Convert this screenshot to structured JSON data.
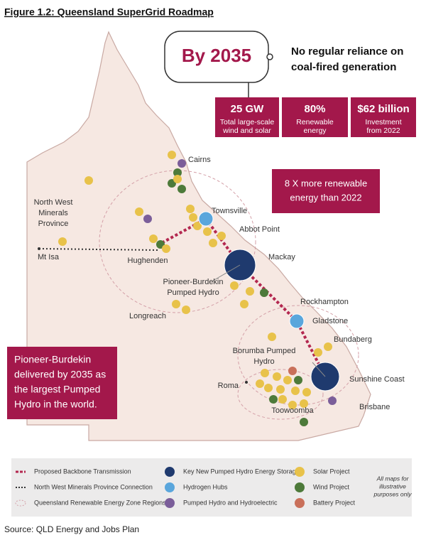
{
  "title": "Figure 1.2: Queensland SuperGrid Roadmap",
  "headline": {
    "callout": "By 2035",
    "statement": [
      "No regular reliance on",
      "coal-fired generation"
    ]
  },
  "stats": [
    {
      "value": "25 GW",
      "label": [
        "Total large-scale",
        "wind and solar"
      ]
    },
    {
      "value": "80%",
      "label": [
        "Renewable",
        "energy"
      ]
    },
    {
      "value": "$62 billion",
      "label": [
        "Investment",
        "from 2022"
      ]
    }
  ],
  "highlight": [
    "8 X more renewable",
    "energy than 2022"
  ],
  "note": [
    "Pioneer-Burdekin",
    "delivered by 2035 as",
    "the largest Pumped",
    "Hydro in the world."
  ],
  "places": [
    [
      "Cairns"
    ],
    [
      "North West",
      "Minerals",
      "Province"
    ],
    [
      "Townsville"
    ],
    [
      "Abbot Point"
    ],
    [
      "Mt Isa"
    ],
    [
      "Hughenden"
    ],
    [
      "Mackay"
    ],
    [
      "Pioneer-Burdekin",
      "Pumped Hydro"
    ],
    [
      "Longreach"
    ],
    [
      "Rockhampton"
    ],
    [
      "Gladstone"
    ],
    [
      "Bundaberg"
    ],
    [
      "Borumba Pumped",
      "Hydro"
    ],
    [
      "Roma"
    ],
    [
      "Sunshine Coast"
    ],
    [
      "Brisbane"
    ],
    [
      "Toowoomba"
    ]
  ],
  "legend": [
    "Proposed Backbone Transmission",
    "North West Minerals Province Connection",
    "Queensland Renewable Energy Zone Regions",
    "Key New Pumped Hydro Energy Storage",
    "Hydrogen Hubs",
    "Pumped Hydro and Hydroelectric",
    "Solar Project",
    "Wind Project",
    "Battery Project"
  ],
  "legend_note": [
    "All maps for",
    "illustrative",
    "purposes only"
  ],
  "source": "Source: QLD Energy and Jobs Plan"
}
